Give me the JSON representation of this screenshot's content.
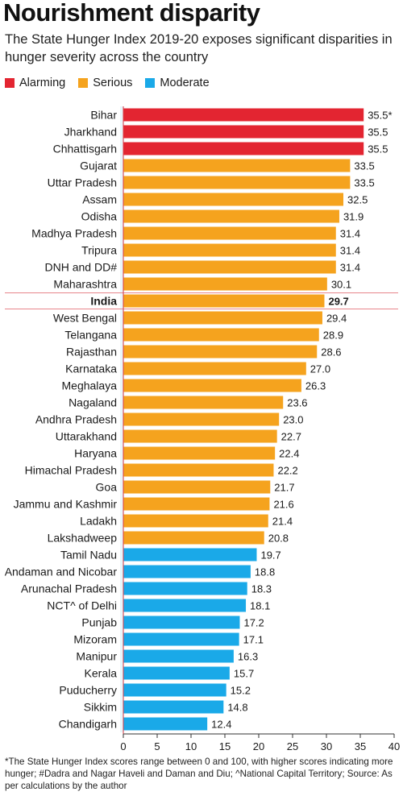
{
  "title": "Nourishment disparity",
  "subtitle": "The State Hunger Index 2019-20 exposes significant disparities in hunger severity across the country",
  "legend": [
    {
      "label": "Alarming",
      "color": "#e32531"
    },
    {
      "label": "Serious",
      "color": "#f5a31e"
    },
    {
      "label": "Moderate",
      "color": "#1aa9e8"
    }
  ],
  "footnote": "*The State Hunger Index scores range between 0 and 100, with higher scores indicating more hunger; #Dadra and Nagar Haveli and Daman and Diu; ^National Capital Territory; Source: As per calculations by the author",
  "chart_data": {
    "type": "bar",
    "orientation": "horizontal",
    "title": "Nourishment disparity",
    "xlim": [
      0,
      40
    ],
    "x_ticks": [
      0,
      5,
      10,
      15,
      20,
      25,
      30,
      35,
      40
    ],
    "grid": false,
    "legend_position": "top-left",
    "categories": [
      "Bihar",
      "Jharkhand",
      "Chhattisgarh",
      "Gujarat",
      "Uttar Pradesh",
      "Assam",
      "Odisha",
      "Madhya Pradesh",
      "Tripura",
      "DNH and DD#",
      "Maharashtra",
      "India",
      "West Bengal",
      "Telangana",
      "Rajasthan",
      "Karnataka",
      "Meghalaya",
      "Nagaland",
      "Andhra Pradesh",
      "Uttarakhand",
      "Haryana",
      "Himachal Pradesh",
      "Goa",
      "Jammu and Kashmir",
      "Ladakh",
      "Lakshadweep",
      "Tamil Nadu",
      "Andaman and Nicobar",
      "Arunachal Pradesh",
      "NCT^ of Delhi",
      "Punjab",
      "Mizoram",
      "Manipur",
      "Kerala",
      "Puducherry",
      "Sikkim",
      "Chandigarh"
    ],
    "values": [
      35.5,
      35.5,
      35.5,
      33.5,
      33.5,
      32.5,
      31.9,
      31.4,
      31.4,
      31.4,
      30.1,
      29.7,
      29.4,
      28.9,
      28.6,
      27.0,
      26.3,
      23.6,
      23.0,
      22.7,
      22.4,
      22.2,
      21.7,
      21.6,
      21.4,
      20.8,
      19.7,
      18.8,
      18.3,
      18.1,
      17.2,
      17.1,
      16.3,
      15.7,
      15.2,
      14.8,
      12.4
    ],
    "value_labels": [
      "35.5*",
      "35.5",
      "35.5",
      "33.5",
      "33.5",
      "32.5",
      "31.9",
      "31.4",
      "31.4",
      "31.4",
      "30.1",
      "29.7",
      "29.4",
      "28.9",
      "28.6",
      "27.0",
      "26.3",
      "23.6",
      "23.0",
      "22.7",
      "22.4",
      "22.2",
      "21.7",
      "21.6",
      "21.4",
      "20.8",
      "19.7",
      "18.8",
      "18.3",
      "18.1",
      "17.2",
      "17.1",
      "16.3",
      "15.7",
      "15.2",
      "14.8",
      "12.4"
    ],
    "category_levels": [
      "Alarming",
      "Alarming",
      "Alarming",
      "Serious",
      "Serious",
      "Serious",
      "Serious",
      "Serious",
      "Serious",
      "Serious",
      "Serious",
      "Serious",
      "Serious",
      "Serious",
      "Serious",
      "Serious",
      "Serious",
      "Serious",
      "Serious",
      "Serious",
      "Serious",
      "Serious",
      "Serious",
      "Serious",
      "Serious",
      "Serious",
      "Moderate",
      "Moderate",
      "Moderate",
      "Moderate",
      "Moderate",
      "Moderate",
      "Moderate",
      "Moderate",
      "Moderate",
      "Moderate",
      "Moderate"
    ],
    "highlighted_category": "India"
  }
}
